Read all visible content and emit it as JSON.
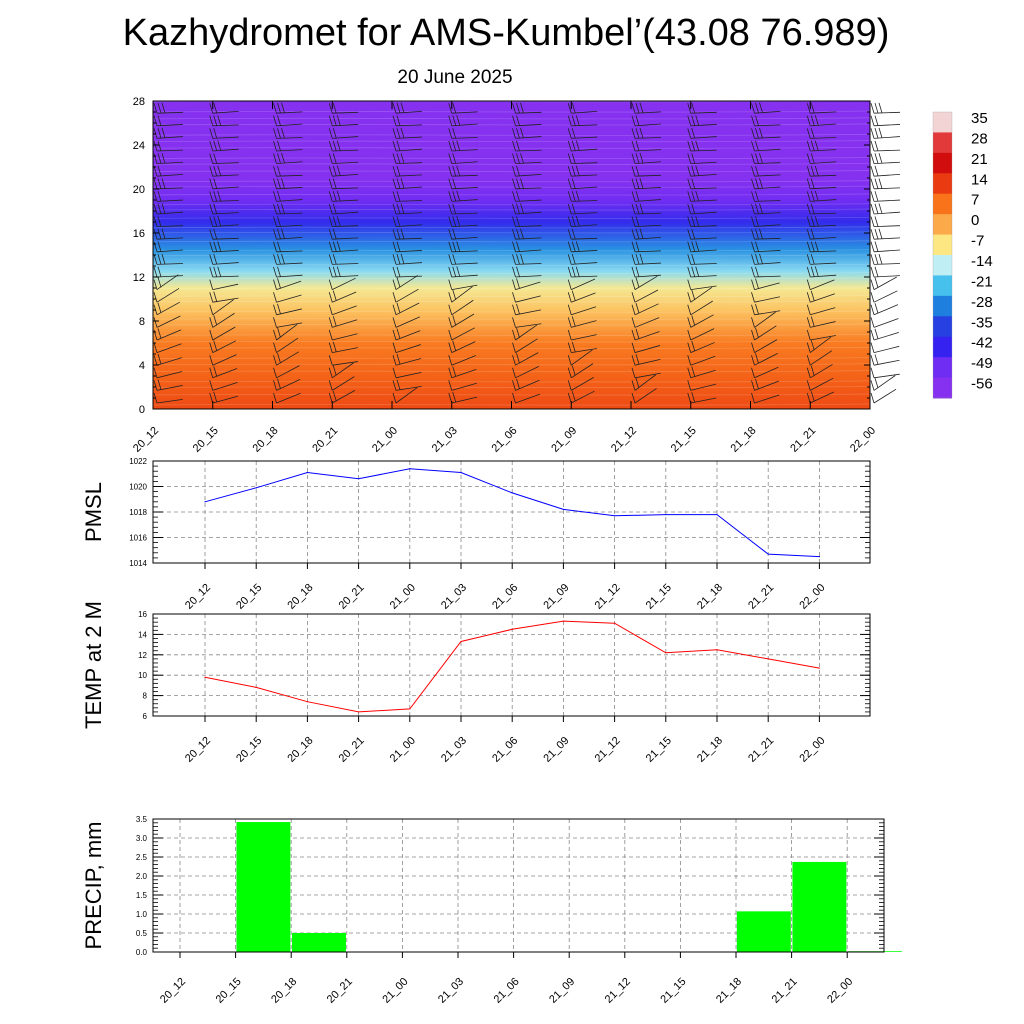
{
  "title": "Kazhydromet for AMS-Kumbel’(43.08 76.989)",
  "subtitle": "20 June 2025",
  "chart_data": [
    {
      "type": "heatmap",
      "name": "temperature-wind cross-section",
      "x": [
        "20_12",
        "20_15",
        "20_18",
        "20_21",
        "21_00",
        "21_03",
        "21_06",
        "21_09",
        "21_12",
        "21_15",
        "21_18",
        "21_21",
        "22_00"
      ],
      "ylim": [
        0,
        28
      ],
      "yticks": [
        0,
        4,
        8,
        12,
        16,
        20,
        24,
        28
      ],
      "colorbar": {
        "labels": [
          "35",
          "28",
          "21",
          "14",
          "7",
          "0",
          "-7",
          "-14",
          "-21",
          "-28",
          "-35",
          "-42",
          "-49",
          "-56"
        ],
        "range": [
          -56,
          35
        ],
        "colors": [
          "#f2d4d4",
          "#e23a3a",
          "#d10d0d",
          "#ea3a12",
          "#f8731a",
          "#fca94a",
          "#fde783",
          "#bfeff5",
          "#46c0ec",
          "#1e7fde",
          "#2740e1",
          "#3622f0",
          "#6f2cf2",
          "#8631f0"
        ]
      },
      "levels": [
        {
          "y": 0,
          "value": 12
        },
        {
          "y": 3,
          "value": 9
        },
        {
          "y": 6,
          "value": 6
        },
        {
          "y": 9,
          "value": -3
        },
        {
          "y": 11,
          "value": -8
        },
        {
          "y": 12.5,
          "value": -17
        },
        {
          "y": 14.5,
          "value": -26
        },
        {
          "y": 17,
          "value": -40
        },
        {
          "y": 19,
          "value": -50
        },
        {
          "y": 21,
          "value": -56
        },
        {
          "y": 28,
          "value": -60
        }
      ]
    },
    {
      "type": "line",
      "ylabel": "PMSL",
      "x": [
        "20_12",
        "20_15",
        "20_18",
        "20_21",
        "21_00",
        "21_03",
        "21_06",
        "21_09",
        "21_12",
        "21_15",
        "21_18",
        "21_21",
        "22_00"
      ],
      "series": [
        {
          "values": [
            1018.8,
            1019.9,
            1021.1,
            1020.6,
            1021.4,
            1021.1,
            1019.5,
            1018.2,
            1017.7,
            1017.8,
            1017.8,
            1014.7,
            1014.5
          ],
          "color": "#0000ff"
        }
      ],
      "ylim": [
        1014,
        1022
      ],
      "yticks": [
        1014,
        1016,
        1018,
        1020,
        1022
      ],
      "grid": true
    },
    {
      "type": "line",
      "ylabel": "TEMP at 2 M",
      "x": [
        "20_12",
        "20_15",
        "20_18",
        "20_21",
        "21_00",
        "21_03",
        "21_06",
        "21_09",
        "21_12",
        "21_15",
        "21_18",
        "21_21",
        "22_00"
      ],
      "series": [
        {
          "values": [
            9.8,
            8.8,
            7.4,
            6.4,
            6.7,
            13.3,
            14.5,
            15.3,
            15.1,
            12.2,
            12.5,
            11.6,
            10.7
          ],
          "color": "#ff0000"
        }
      ],
      "ylim": [
        6,
        16
      ],
      "yticks": [
        6,
        8,
        10,
        12,
        14,
        16
      ],
      "grid": true
    },
    {
      "type": "bar",
      "ylabel": "PRECIP, mm",
      "categories": [
        "20_12",
        "20_15",
        "20_18",
        "20_21",
        "21_00",
        "21_03",
        "21_06",
        "21_09",
        "21_12",
        "21_15",
        "21_18",
        "21_21",
        "22_00"
      ],
      "values": [
        0,
        3.42,
        0.5,
        0,
        0,
        0,
        0,
        0,
        0,
        0,
        1.07,
        2.37,
        0.02
      ],
      "color": "#00ff00",
      "ylim": [
        0,
        3.5
      ],
      "yticks": [
        "0.0",
        "0.5",
        "1.0",
        "1.5",
        "2.0",
        "2.5",
        "3.0",
        "3.5"
      ],
      "grid": true
    }
  ]
}
